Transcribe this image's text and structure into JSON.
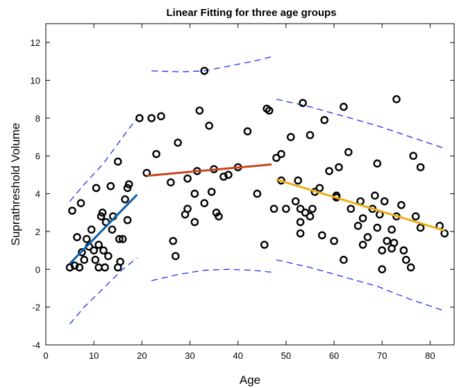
{
  "chart_data": {
    "type": "scatter",
    "title": "Linear Fitting for three age groups",
    "xlabel": "Age",
    "ylabel": "Suprathreshold Volume",
    "xlim": [
      0,
      85
    ],
    "ylim": [
      -4,
      13
    ],
    "xticks": [
      0,
      10,
      20,
      30,
      40,
      50,
      60,
      70,
      80
    ],
    "yticks": [
      -4,
      -2,
      0,
      2,
      4,
      6,
      8,
      10,
      12
    ],
    "grid": false,
    "marker_color": "#000000",
    "points": [
      [
        5,
        0.1
      ],
      [
        5.5,
        3.1
      ],
      [
        6,
        0.2
      ],
      [
        6.5,
        1.7
      ],
      [
        7,
        0.1
      ],
      [
        7.3,
        3.5
      ],
      [
        7.5,
        0.9
      ],
      [
        8,
        0.5
      ],
      [
        8.5,
        1.6
      ],
      [
        9,
        1.2
      ],
      [
        9.5,
        2.1
      ],
      [
        10,
        1.0
      ],
      [
        10.3,
        0.5
      ],
      [
        10.5,
        4.3
      ],
      [
        11,
        1.3
      ],
      [
        11,
        0.1
      ],
      [
        11.5,
        2.8
      ],
      [
        11.8,
        3.0
      ],
      [
        12,
        1.0
      ],
      [
        12.3,
        0.1
      ],
      [
        12.5,
        2.5
      ],
      [
        13,
        0.7
      ],
      [
        13.5,
        4.4
      ],
      [
        13.8,
        2.1
      ],
      [
        14,
        2.8
      ],
      [
        15,
        0.1
      ],
      [
        15,
        5.7
      ],
      [
        15.3,
        1.6
      ],
      [
        15.5,
        0.4
      ],
      [
        16,
        1.6
      ],
      [
        16.5,
        3.7
      ],
      [
        17,
        2.6
      ],
      [
        17,
        4.3
      ],
      [
        17.3,
        4.5
      ],
      [
        19.5,
        8.0
      ],
      [
        21,
        5.1
      ],
      [
        22,
        8.0
      ],
      [
        23,
        6.1
      ],
      [
        24,
        8.1
      ],
      [
        26,
        4.6
      ],
      [
        26.5,
        1.5
      ],
      [
        27,
        0.7
      ],
      [
        27.5,
        6.7
      ],
      [
        29,
        2.9
      ],
      [
        29.5,
        3.2
      ],
      [
        29.5,
        4.8
      ],
      [
        31,
        2.5
      ],
      [
        31.5,
        5.2
      ],
      [
        31,
        4.0
      ],
      [
        32,
        8.4
      ],
      [
        33,
        10.5
      ],
      [
        33,
        3.5
      ],
      [
        34,
        7.6
      ],
      [
        34.5,
        4.1
      ],
      [
        35,
        5.3
      ],
      [
        35.5,
        3.0
      ],
      [
        36,
        2.8
      ],
      [
        37,
        4.9
      ],
      [
        38,
        5.0
      ],
      [
        40,
        5.4
      ],
      [
        42,
        7.3
      ],
      [
        44,
        4.0
      ],
      [
        45.5,
        1.3
      ],
      [
        46,
        8.5
      ],
      [
        46.5,
        8.4
      ],
      [
        47.5,
        3.2
      ],
      [
        48,
        5.9
      ],
      [
        49,
        6.1
      ],
      [
        49,
        4.7
      ],
      [
        50,
        3.2
      ],
      [
        51,
        7.0
      ],
      [
        52,
        3.6
      ],
      [
        52.5,
        4.7
      ],
      [
        53,
        2.5
      ],
      [
        53,
        1.9
      ],
      [
        53,
        3.2
      ],
      [
        53.5,
        8.8
      ],
      [
        54,
        3.0
      ],
      [
        55,
        2.8
      ],
      [
        55,
        7.1
      ],
      [
        55.5,
        3.2
      ],
      [
        56,
        4.1
      ],
      [
        57,
        4.3
      ],
      [
        57.5,
        1.8
      ],
      [
        58,
        7.9
      ],
      [
        59,
        5.2
      ],
      [
        60,
        1.5
      ],
      [
        60.5,
        3.8
      ],
      [
        60.5,
        3.9
      ],
      [
        61,
        5.4
      ],
      [
        62,
        8.6
      ],
      [
        62,
        0.5
      ],
      [
        63,
        6.2
      ],
      [
        63.5,
        3.2
      ],
      [
        65,
        2.3
      ],
      [
        65.5,
        3.6
      ],
      [
        66,
        2.7
      ],
      [
        66,
        1.3
      ],
      [
        67,
        1.7
      ],
      [
        68,
        3.2
      ],
      [
        68.5,
        3.9
      ],
      [
        69,
        5.6
      ],
      [
        69,
        2.2
      ],
      [
        69.5,
        2.9
      ],
      [
        70,
        1.0
      ],
      [
        70,
        0.0
      ],
      [
        70.5,
        3.6
      ],
      [
        71,
        1.5
      ],
      [
        72,
        2.1
      ],
      [
        72,
        1.1
      ],
      [
        72.5,
        1.4
      ],
      [
        73,
        9.0
      ],
      [
        73,
        2.8
      ],
      [
        74,
        3.4
      ],
      [
        74.5,
        1.0
      ],
      [
        75,
        0.5
      ],
      [
        76,
        0.1
      ],
      [
        76.5,
        6.0
      ],
      [
        77,
        2.8
      ],
      [
        78,
        2.2
      ],
      [
        78,
        5.4
      ],
      [
        82,
        2.3
      ],
      [
        83,
        1.9
      ]
    ],
    "fits": [
      {
        "x": [
          5,
          19
        ],
        "y": [
          0.3,
          3.95
        ],
        "color": "#0d5fa8"
      },
      {
        "x": [
          21,
          47
        ],
        "y": [
          4.95,
          5.55
        ],
        "color": "#c2461a"
      },
      {
        "x": [
          48,
          83
        ],
        "y": [
          4.75,
          2.05
        ],
        "color": "#ebae18"
      }
    ],
    "bands": [
      {
        "x": [
          5,
          8,
          12,
          16,
          19
        ],
        "y": [
          3.6,
          4.5,
          5.6,
          7.0,
          8.0
        ],
        "color": "#1f2ef0"
      },
      {
        "x": [
          5,
          8,
          12,
          16,
          19
        ],
        "y": [
          -2.9,
          -2.0,
          -1.0,
          0.0,
          0.6
        ],
        "color": "#1f2ef0"
      },
      {
        "x": [
          22,
          28,
          33,
          38,
          43,
          47
        ],
        "y": [
          10.5,
          10.45,
          10.5,
          10.75,
          11.0,
          11.25
        ],
        "color": "#1f2ef0"
      },
      {
        "x": [
          22,
          28,
          33,
          38,
          43,
          47
        ],
        "y": [
          -0.6,
          -0.25,
          -0.05,
          0.0,
          -0.05,
          -0.15
        ],
        "color": "#1f2ef0"
      },
      {
        "x": [
          48,
          55,
          62,
          69,
          76,
          83
        ],
        "y": [
          9.0,
          8.6,
          8.1,
          7.6,
          7.0,
          6.4
        ],
        "color": "#1f2ef0"
      },
      {
        "x": [
          48,
          55,
          62,
          69,
          76,
          83
        ],
        "y": [
          0.5,
          0.1,
          -0.4,
          -0.9,
          -1.6,
          -2.2
        ],
        "color": "#1f2ef0"
      }
    ]
  }
}
